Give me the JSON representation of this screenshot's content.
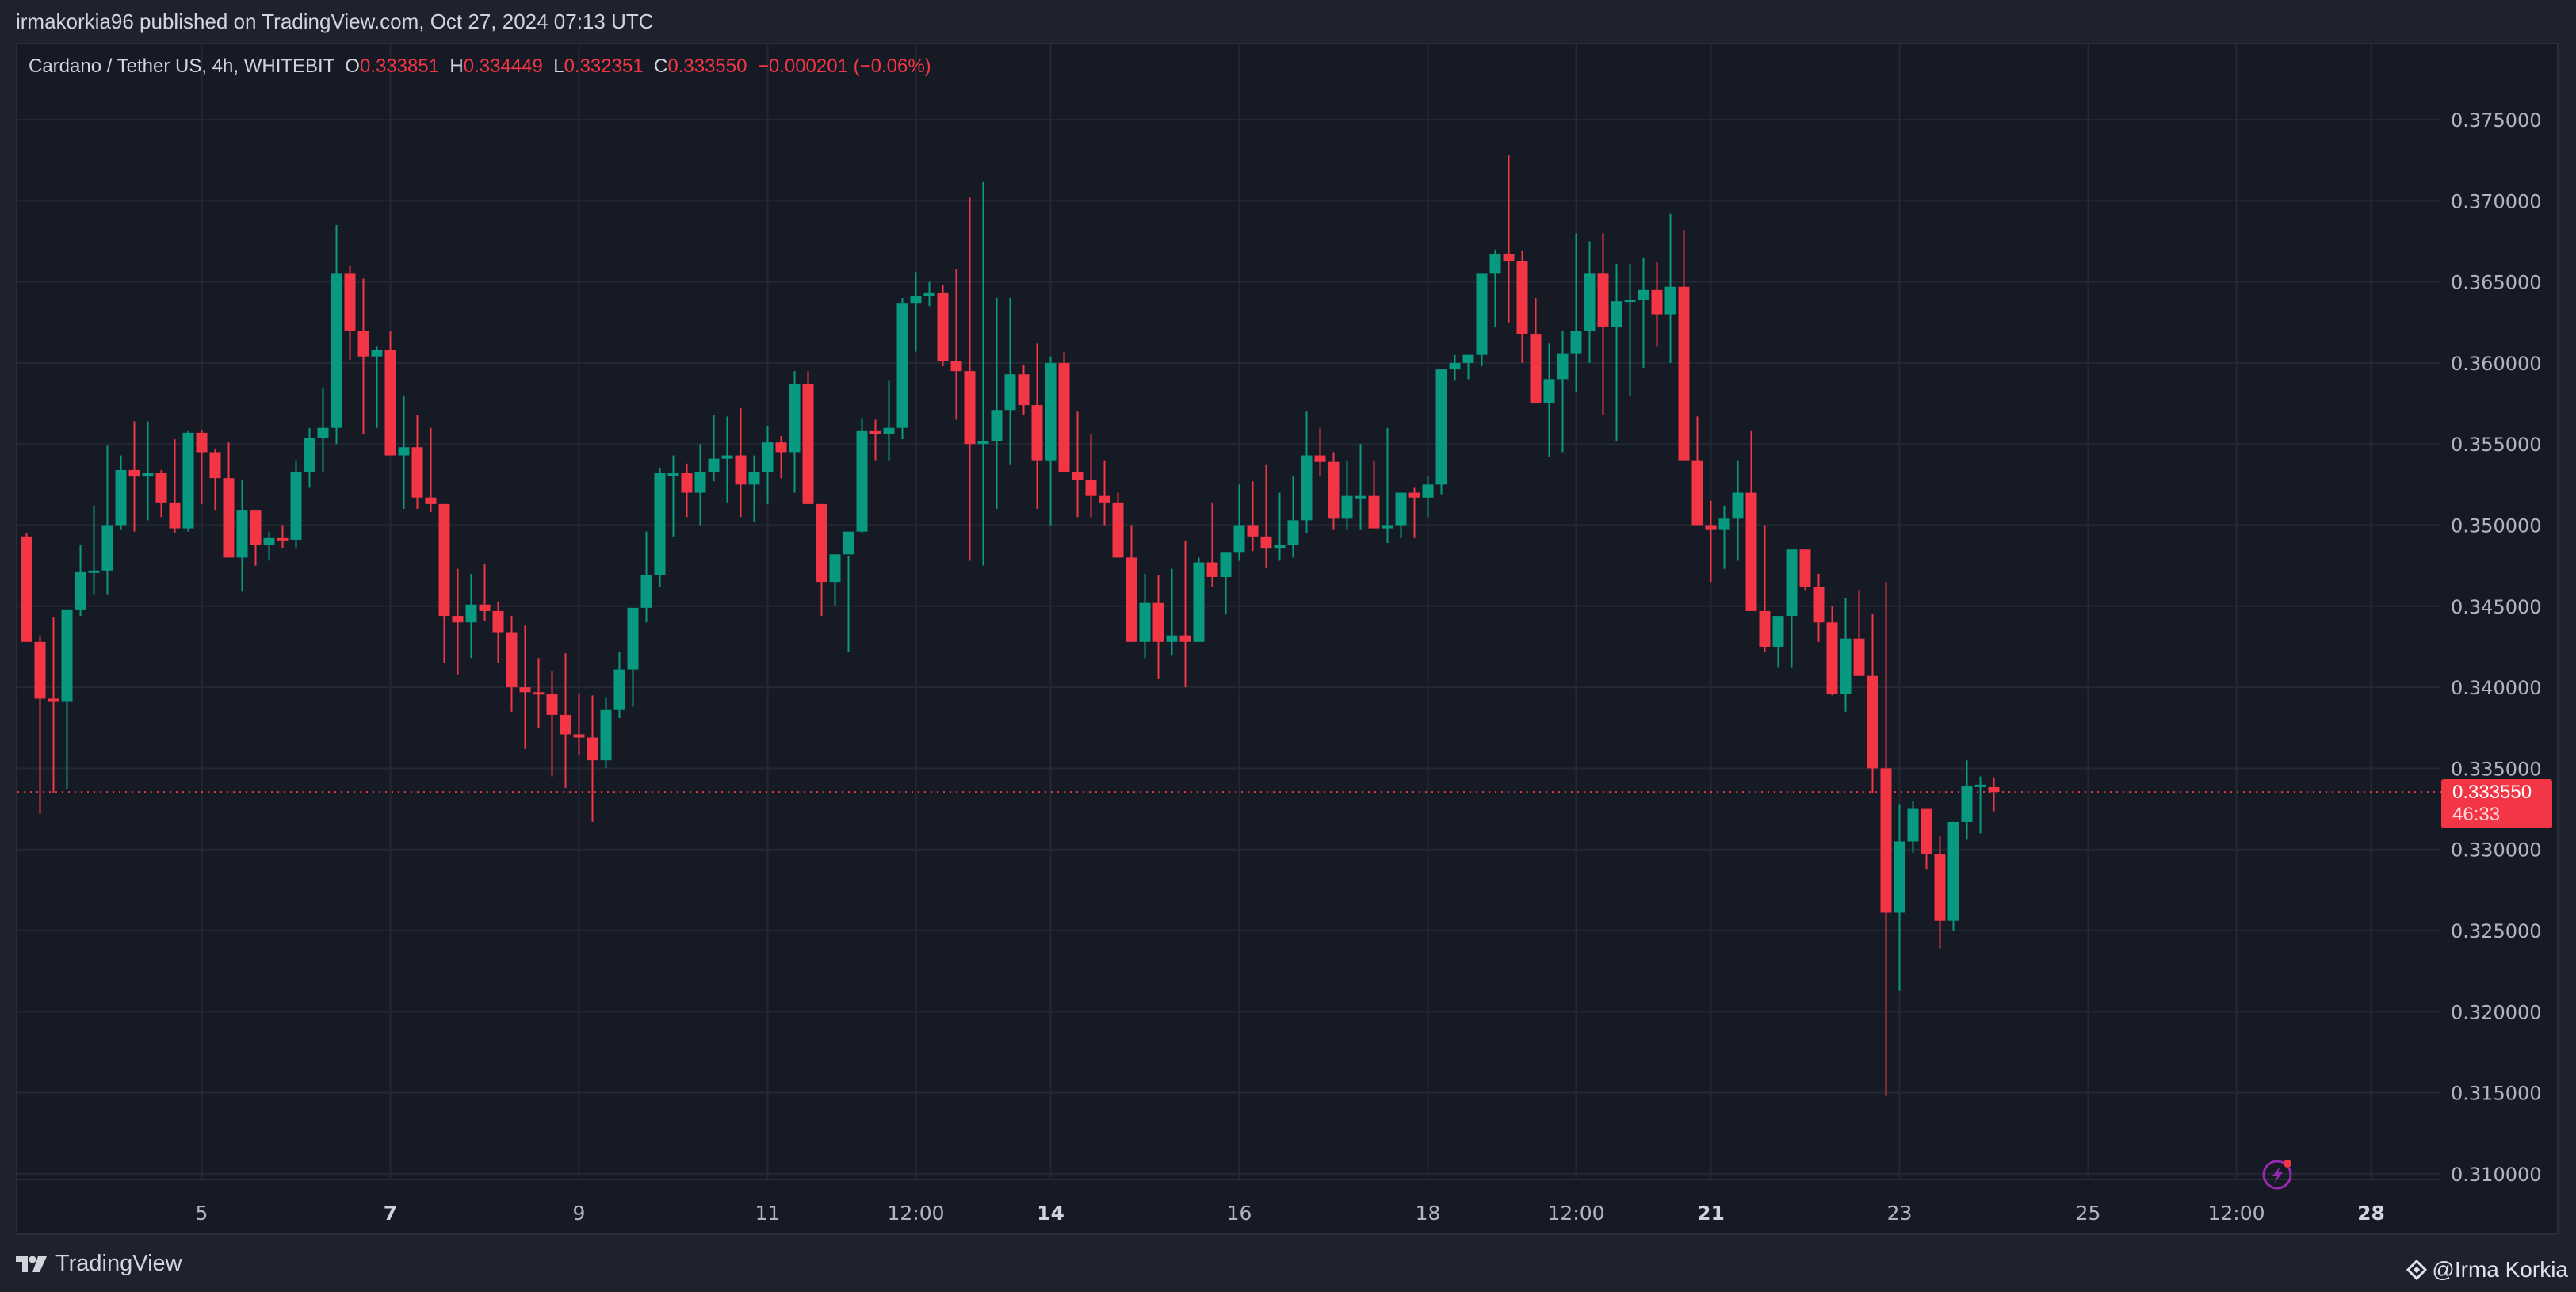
{
  "header": {
    "published": "irmakorkia96 published on TradingView.com, Oct 27, 2024 07:13 UTC"
  },
  "legend": {
    "symbol": "Cardano / Tether US, 4h, WHITEBIT",
    "o_label": "O",
    "o_value": "0.333851",
    "h_label": "H",
    "h_value": "0.334449",
    "l_label": "L",
    "l_value": "0.332351",
    "c_label": "C",
    "c_value": "0.333550",
    "change": "−0.000201 (−0.06%)"
  },
  "price_tag": {
    "price": "0.333550",
    "countdown": "46:33"
  },
  "footer": {
    "brand": "TradingView",
    "author": "@Irma Korkia"
  },
  "colors": {
    "up": "#089981",
    "down": "#f23645",
    "bg": "#161a25",
    "grid": "#242833",
    "axis_text": "#b2b5be",
    "accent_bolt": "#9c27b0"
  },
  "chart_data": {
    "type": "candlestick",
    "title": "Cardano / Tether US, 4h, WHITEBIT",
    "ylim": [
      0.3085,
      0.3785
    ],
    "yticks": [
      "0.375000",
      "0.370000",
      "0.365000",
      "0.360000",
      "0.355000",
      "0.350000",
      "0.345000",
      "0.340000",
      "0.335000",
      "0.330000",
      "0.325000",
      "0.320000",
      "0.315000",
      "0.310000"
    ],
    "xticks": [
      {
        "label": "5",
        "i": 13,
        "bold": false
      },
      {
        "label": "7",
        "i": 27,
        "bold": true
      },
      {
        "label": "9",
        "i": 41,
        "bold": false
      },
      {
        "label": "11",
        "i": 55,
        "bold": false
      },
      {
        "label": "12:00",
        "i": 66,
        "bold": false
      },
      {
        "label": "14",
        "i": 76,
        "bold": true
      },
      {
        "label": "16",
        "i": 90,
        "bold": false
      },
      {
        "label": "18",
        "i": 104,
        "bold": false
      },
      {
        "label": "12:00",
        "i": 115,
        "bold": false
      },
      {
        "label": "21",
        "i": 125,
        "bold": true
      },
      {
        "label": "23",
        "i": 139,
        "bold": false
      },
      {
        "label": "25",
        "i": 153,
        "bold": false
      },
      {
        "label": "12:00",
        "i": 164,
        "bold": false
      },
      {
        "label": "28",
        "i": 174,
        "bold": true
      }
    ],
    "last_price": 0.33355,
    "candles": [
      [
        0.3493,
        0.3495,
        0.3428,
        0.3428
      ],
      [
        0.3428,
        0.3432,
        0.3322,
        0.3393
      ],
      [
        0.3393,
        0.3443,
        0.3335,
        0.3391
      ],
      [
        0.3391,
        0.3446,
        0.3337,
        0.3448
      ],
      [
        0.3448,
        0.3488,
        0.3444,
        0.3471
      ],
      [
        0.3471,
        0.3512,
        0.3457,
        0.3472
      ],
      [
        0.3472,
        0.3549,
        0.3457,
        0.35
      ],
      [
        0.35,
        0.3543,
        0.3497,
        0.3534
      ],
      [
        0.3534,
        0.3564,
        0.3496,
        0.353
      ],
      [
        0.353,
        0.3564,
        0.3503,
        0.3532
      ],
      [
        0.3532,
        0.3534,
        0.3505,
        0.3514
      ],
      [
        0.3514,
        0.3553,
        0.3495,
        0.3498
      ],
      [
        0.3498,
        0.3558,
        0.3496,
        0.3557
      ],
      [
        0.3557,
        0.3559,
        0.3513,
        0.3545
      ],
      [
        0.3545,
        0.3547,
        0.3509,
        0.3529
      ],
      [
        0.3529,
        0.3551,
        0.348,
        0.348
      ],
      [
        0.348,
        0.3528,
        0.3459,
        0.3509
      ],
      [
        0.3509,
        0.3509,
        0.3475,
        0.3488
      ],
      [
        0.3488,
        0.3496,
        0.3478,
        0.3492
      ],
      [
        0.3492,
        0.35,
        0.3486,
        0.3491
      ],
      [
        0.3491,
        0.354,
        0.3486,
        0.3533
      ],
      [
        0.3533,
        0.356,
        0.3523,
        0.3554
      ],
      [
        0.3554,
        0.3585,
        0.3533,
        0.356
      ],
      [
        0.356,
        0.3685,
        0.355,
        0.3655
      ],
      [
        0.3655,
        0.366,
        0.3602,
        0.362
      ],
      [
        0.362,
        0.3652,
        0.3556,
        0.3604
      ],
      [
        0.3604,
        0.361,
        0.356,
        0.3608
      ],
      [
        0.3608,
        0.362,
        0.3545,
        0.3543
      ],
      [
        0.3543,
        0.358,
        0.351,
        0.3548
      ],
      [
        0.3548,
        0.3568,
        0.351,
        0.3517
      ],
      [
        0.3517,
        0.356,
        0.3508,
        0.3513
      ],
      [
        0.3513,
        0.3513,
        0.3415,
        0.3444
      ],
      [
        0.3444,
        0.3473,
        0.3408,
        0.344
      ],
      [
        0.344,
        0.347,
        0.3418,
        0.3451
      ],
      [
        0.3451,
        0.3476,
        0.3441,
        0.3447
      ],
      [
        0.3447,
        0.3453,
        0.3415,
        0.3434
      ],
      [
        0.3434,
        0.3444,
        0.3385,
        0.34
      ],
      [
        0.34,
        0.3438,
        0.3362,
        0.3397
      ],
      [
        0.3397,
        0.3418,
        0.3375,
        0.3396
      ],
      [
        0.3396,
        0.341,
        0.3345,
        0.3383
      ],
      [
        0.3383,
        0.3421,
        0.3338,
        0.3371
      ],
      [
        0.3371,
        0.3396,
        0.3358,
        0.3369
      ],
      [
        0.3369,
        0.3395,
        0.3317,
        0.3355
      ],
      [
        0.3355,
        0.3394,
        0.335,
        0.3386
      ],
      [
        0.3386,
        0.3422,
        0.3381,
        0.3411
      ],
      [
        0.3411,
        0.3448,
        0.3388,
        0.3449
      ],
      [
        0.3449,
        0.3496,
        0.344,
        0.3469
      ],
      [
        0.3469,
        0.3535,
        0.3462,
        0.3532
      ],
      [
        0.3532,
        0.3543,
        0.3493,
        0.3532
      ],
      [
        0.3532,
        0.3538,
        0.3505,
        0.352
      ],
      [
        0.352,
        0.355,
        0.35,
        0.3533
      ],
      [
        0.3533,
        0.3568,
        0.3527,
        0.3541
      ],
      [
        0.3541,
        0.3567,
        0.3514,
        0.3543
      ],
      [
        0.3543,
        0.3572,
        0.3505,
        0.3525
      ],
      [
        0.3525,
        0.3543,
        0.3502,
        0.3533
      ],
      [
        0.3533,
        0.3561,
        0.3513,
        0.3551
      ],
      [
        0.3551,
        0.3555,
        0.3529,
        0.3545
      ],
      [
        0.3545,
        0.3595,
        0.352,
        0.3587
      ],
      [
        0.3587,
        0.3595,
        0.3514,
        0.3513
      ],
      [
        0.3513,
        0.3513,
        0.3444,
        0.3465
      ],
      [
        0.3465,
        0.3481,
        0.345,
        0.3482
      ],
      [
        0.3482,
        0.3481,
        0.3422,
        0.3496
      ],
      [
        0.3496,
        0.3566,
        0.3495,
        0.3558
      ],
      [
        0.3558,
        0.3565,
        0.354,
        0.3556
      ],
      [
        0.3556,
        0.3589,
        0.354,
        0.356
      ],
      [
        0.356,
        0.364,
        0.3553,
        0.3637
      ],
      [
        0.3637,
        0.3656,
        0.3607,
        0.3641
      ],
      [
        0.3641,
        0.365,
        0.3635,
        0.3643
      ],
      [
        0.3643,
        0.3648,
        0.3598,
        0.3601
      ],
      [
        0.3601,
        0.3658,
        0.3565,
        0.3595
      ],
      [
        0.3595,
        0.3702,
        0.3478,
        0.355
      ],
      [
        0.355,
        0.3712,
        0.3475,
        0.3552
      ],
      [
        0.3552,
        0.364,
        0.351,
        0.3571
      ],
      [
        0.3571,
        0.364,
        0.3537,
        0.3593
      ],
      [
        0.3593,
        0.3599,
        0.3568,
        0.3574
      ],
      [
        0.3574,
        0.3612,
        0.351,
        0.354
      ],
      [
        0.354,
        0.3604,
        0.35,
        0.36
      ],
      [
        0.36,
        0.3607,
        0.3562,
        0.3533
      ],
      [
        0.3533,
        0.357,
        0.3505,
        0.3528
      ],
      [
        0.3528,
        0.3556,
        0.3505,
        0.3518
      ],
      [
        0.3518,
        0.354,
        0.35,
        0.3514
      ],
      [
        0.3514,
        0.352,
        0.3485,
        0.348
      ],
      [
        0.348,
        0.35,
        0.3475,
        0.3428
      ],
      [
        0.3428,
        0.347,
        0.3418,
        0.3452
      ],
      [
        0.3452,
        0.3469,
        0.3405,
        0.3428
      ],
      [
        0.3428,
        0.3473,
        0.342,
        0.3432
      ],
      [
        0.3432,
        0.349,
        0.34,
        0.3428
      ],
      [
        0.3428,
        0.348,
        0.3428,
        0.3477
      ],
      [
        0.3477,
        0.3514,
        0.3462,
        0.3468
      ],
      [
        0.3468,
        0.3478,
        0.3445,
        0.3483
      ],
      [
        0.3483,
        0.3525,
        0.3478,
        0.35
      ],
      [
        0.35,
        0.3527,
        0.3484,
        0.3493
      ],
      [
        0.3493,
        0.3537,
        0.3474,
        0.3486
      ],
      [
        0.3486,
        0.352,
        0.3478,
        0.3488
      ],
      [
        0.3488,
        0.353,
        0.348,
        0.3503
      ],
      [
        0.3503,
        0.357,
        0.3495,
        0.3543
      ],
      [
        0.3543,
        0.356,
        0.353,
        0.3539
      ],
      [
        0.3539,
        0.3545,
        0.3497,
        0.3504
      ],
      [
        0.3504,
        0.354,
        0.3497,
        0.3518
      ],
      [
        0.3518,
        0.355,
        0.3497,
        0.3518
      ],
      [
        0.3518,
        0.354,
        0.3502,
        0.3498
      ],
      [
        0.3498,
        0.356,
        0.3489,
        0.35
      ],
      [
        0.35,
        0.352,
        0.3492,
        0.352
      ],
      [
        0.352,
        0.3523,
        0.3492,
        0.3517
      ],
      [
        0.3517,
        0.353,
        0.3505,
        0.3525
      ],
      [
        0.3525,
        0.358,
        0.3519,
        0.3596
      ],
      [
        0.3596,
        0.3605,
        0.3589,
        0.36
      ],
      [
        0.36,
        0.3605,
        0.359,
        0.3605
      ],
      [
        0.3605,
        0.3652,
        0.3598,
        0.3655
      ],
      [
        0.3655,
        0.367,
        0.3622,
        0.3667
      ],
      [
        0.3667,
        0.3728,
        0.3625,
        0.3663
      ],
      [
        0.3663,
        0.3669,
        0.36,
        0.3618
      ],
      [
        0.3618,
        0.364,
        0.3578,
        0.3575
      ],
      [
        0.3575,
        0.3612,
        0.3542,
        0.359
      ],
      [
        0.359,
        0.362,
        0.3545,
        0.3606
      ],
      [
        0.3606,
        0.368,
        0.3582,
        0.362
      ],
      [
        0.362,
        0.3675,
        0.36,
        0.3655
      ],
      [
        0.3655,
        0.368,
        0.3568,
        0.3622
      ],
      [
        0.3622,
        0.3661,
        0.3552,
        0.3638
      ],
      [
        0.3638,
        0.3661,
        0.358,
        0.3639
      ],
      [
        0.3639,
        0.3665,
        0.3597,
        0.3645
      ],
      [
        0.3645,
        0.3662,
        0.361,
        0.363
      ],
      [
        0.363,
        0.3692,
        0.36,
        0.3647
      ],
      [
        0.3647,
        0.3682,
        0.354,
        0.354
      ],
      [
        0.354,
        0.3567,
        0.35,
        0.35
      ],
      [
        0.35,
        0.3515,
        0.3465,
        0.3497
      ],
      [
        0.3497,
        0.3512,
        0.3473,
        0.3504
      ],
      [
        0.3504,
        0.354,
        0.3478,
        0.352
      ],
      [
        0.352,
        0.3558,
        0.3462,
        0.3447
      ],
      [
        0.3447,
        0.35,
        0.3422,
        0.3425
      ],
      [
        0.3425,
        0.344,
        0.3412,
        0.3444
      ],
      [
        0.3444,
        0.346,
        0.3412,
        0.3485
      ],
      [
        0.3485,
        0.3485,
        0.346,
        0.3462
      ],
      [
        0.3462,
        0.347,
        0.3428,
        0.344
      ],
      [
        0.344,
        0.345,
        0.3395,
        0.3396
      ],
      [
        0.3396,
        0.3455,
        0.3385,
        0.343
      ],
      [
        0.343,
        0.346,
        0.3412,
        0.3407
      ],
      [
        0.3407,
        0.3445,
        0.3335,
        0.335
      ],
      [
        0.335,
        0.3465,
        0.3148,
        0.3261
      ],
      [
        0.3261,
        0.3328,
        0.3213,
        0.3305
      ],
      [
        0.3305,
        0.333,
        0.3298,
        0.3325
      ],
      [
        0.3325,
        0.3322,
        0.3288,
        0.3297
      ],
      [
        0.3297,
        0.3308,
        0.3239,
        0.3256
      ],
      [
        0.3256,
        0.3317,
        0.325,
        0.3317
      ],
      [
        0.3317,
        0.3355,
        0.3306,
        0.3339
      ],
      [
        0.3339,
        0.3345,
        0.331,
        0.334
      ],
      [
        0.33385,
        0.33445,
        0.33235,
        0.33355
      ]
    ]
  }
}
